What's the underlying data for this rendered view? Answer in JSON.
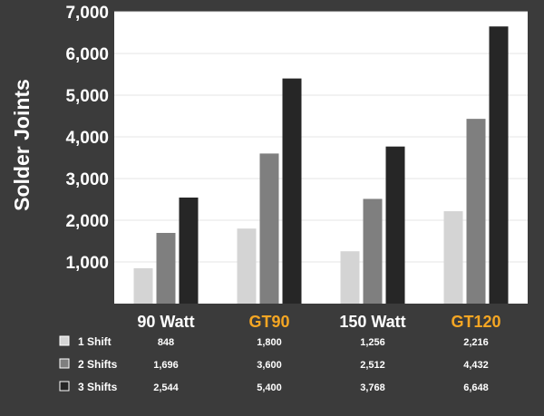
{
  "chart_data": {
    "type": "bar",
    "ylabel": "Solder Joints",
    "ylim": [
      0,
      7000
    ],
    "yticks": [
      "1,000",
      "2,000",
      "3,000",
      "4,000",
      "5,000",
      "6,000",
      "7,000"
    ],
    "ytick_values": [
      1000,
      2000,
      3000,
      4000,
      5000,
      6000,
      7000
    ],
    "grid": true,
    "categories": [
      "90 Watt",
      "GT90",
      "150 Watt",
      "GT120"
    ],
    "category_colors": [
      "#ffffff",
      "#f5a623",
      "#ffffff",
      "#f5a623"
    ],
    "series": [
      {
        "name": "1 Shift",
        "color": "#d4d4d4",
        "values": [
          848,
          1800,
          1256,
          2216
        ],
        "labels": [
          "848",
          "1,800",
          "1,256",
          "2,216"
        ]
      },
      {
        "name": "2 Shifts",
        "color": "#7f7f7f",
        "values": [
          1696,
          3600,
          2512,
          4432
        ],
        "labels": [
          "1,696",
          "3,600",
          "2,512",
          "4,432"
        ]
      },
      {
        "name": "3 Shifts",
        "color": "#262626",
        "values": [
          2544,
          5400,
          3768,
          6648
        ],
        "labels": [
          "2,544",
          "5,400",
          "3,768",
          "6,648"
        ]
      }
    ]
  },
  "colors": {
    "background": "#3b3b3b",
    "plot": "#ffffff",
    "grid": "#e6e6e6",
    "accent": "#f5a623"
  }
}
